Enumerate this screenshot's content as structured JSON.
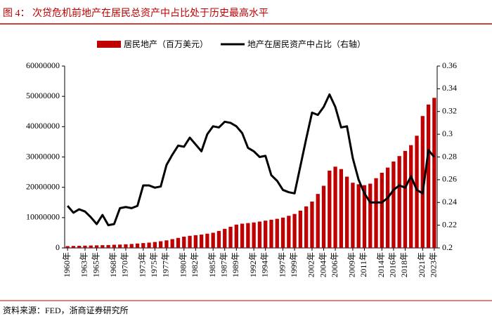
{
  "chart_data": {
    "type": "bar",
    "title": "图 4：  次贷危机前地产在居民总资产中占比处于历史最高水平",
    "source": "资料来源：FED，浙商证券研究所",
    "categories": [
      "1960年",
      null,
      null,
      "1963年",
      null,
      "1965年",
      null,
      null,
      "1968年",
      null,
      "1970年",
      null,
      null,
      "1973年",
      null,
      "1975年",
      null,
      "1977年",
      null,
      null,
      "1980年",
      null,
      "1982年",
      null,
      null,
      "1985年",
      null,
      "1987年",
      null,
      "1989年",
      null,
      null,
      "1992年",
      null,
      "1994年",
      null,
      null,
      "1997年",
      null,
      "1999年",
      null,
      null,
      "2002年",
      null,
      "2004年",
      null,
      "2006年",
      null,
      null,
      "2009年",
      null,
      "2011年",
      null,
      null,
      "2014年",
      null,
      "2016年",
      null,
      "2018年",
      null,
      null,
      "2021年",
      null,
      "2023年"
    ],
    "series": [
      {
        "name": "居民地产（百万美元）",
        "type": "bar",
        "color": "#c00000",
        "axis": "y",
        "values": [
          600000,
          650000,
          700000,
          750000,
          800000,
          850000,
          900000,
          950000,
          1050000,
          1100000,
          1200000,
          1300000,
          1450000,
          1600000,
          1750000,
          1950000,
          2200000,
          2500000,
          2900000,
          3300000,
          3700000,
          4000000,
          4200000,
          4400000,
          4700000,
          5000000,
          5600000,
          6300000,
          7000000,
          7700000,
          8000000,
          8200000,
          8400000,
          8700000,
          9000000,
          9300000,
          9600000,
          10000000,
          10600000,
          11200000,
          12300000,
          13700000,
          15300000,
          17800000,
          20500000,
          25500000,
          26800000,
          26000000,
          23500000,
          21500000,
          21000000,
          20700000,
          21200000,
          23000000,
          24800000,
          26500000,
          28500000,
          30300000,
          32000000,
          33900000,
          37000000,
          43500000,
          47300000,
          49500000
        ]
      },
      {
        "name": "地产在居民资产中占比（右轴）",
        "type": "line",
        "color": "#000000",
        "axis": "y2",
        "values": [
          0.237,
          0.231,
          0.234,
          0.232,
          0.227,
          0.221,
          0.229,
          0.22,
          0.221,
          0.235,
          0.236,
          0.235,
          0.237,
          0.255,
          0.255,
          0.253,
          0.254,
          0.273,
          0.282,
          0.29,
          0.289,
          0.297,
          0.291,
          0.285,
          0.3,
          0.307,
          0.306,
          0.311,
          0.31,
          0.307,
          0.301,
          0.288,
          0.285,
          0.28,
          0.281,
          0.264,
          0.259,
          0.251,
          0.249,
          0.248,
          0.272,
          0.296,
          0.319,
          0.317,
          0.324,
          0.335,
          0.324,
          0.306,
          0.307,
          0.279,
          0.26,
          0.248,
          0.24,
          0.24,
          0.24,
          0.244,
          0.251,
          0.255,
          0.253,
          0.263,
          0.251,
          0.248,
          0.286,
          0.28
        ]
      }
    ],
    "ylim": [
      0,
      60000000
    ],
    "yticks": [
      0,
      10000000,
      20000000,
      30000000,
      40000000,
      50000000,
      60000000
    ],
    "y2lim": [
      0.2,
      0.36
    ],
    "y2ticks": [
      0.2,
      0.22,
      0.24,
      0.26,
      0.28,
      0.3,
      0.32,
      0.34,
      0.36
    ]
  }
}
